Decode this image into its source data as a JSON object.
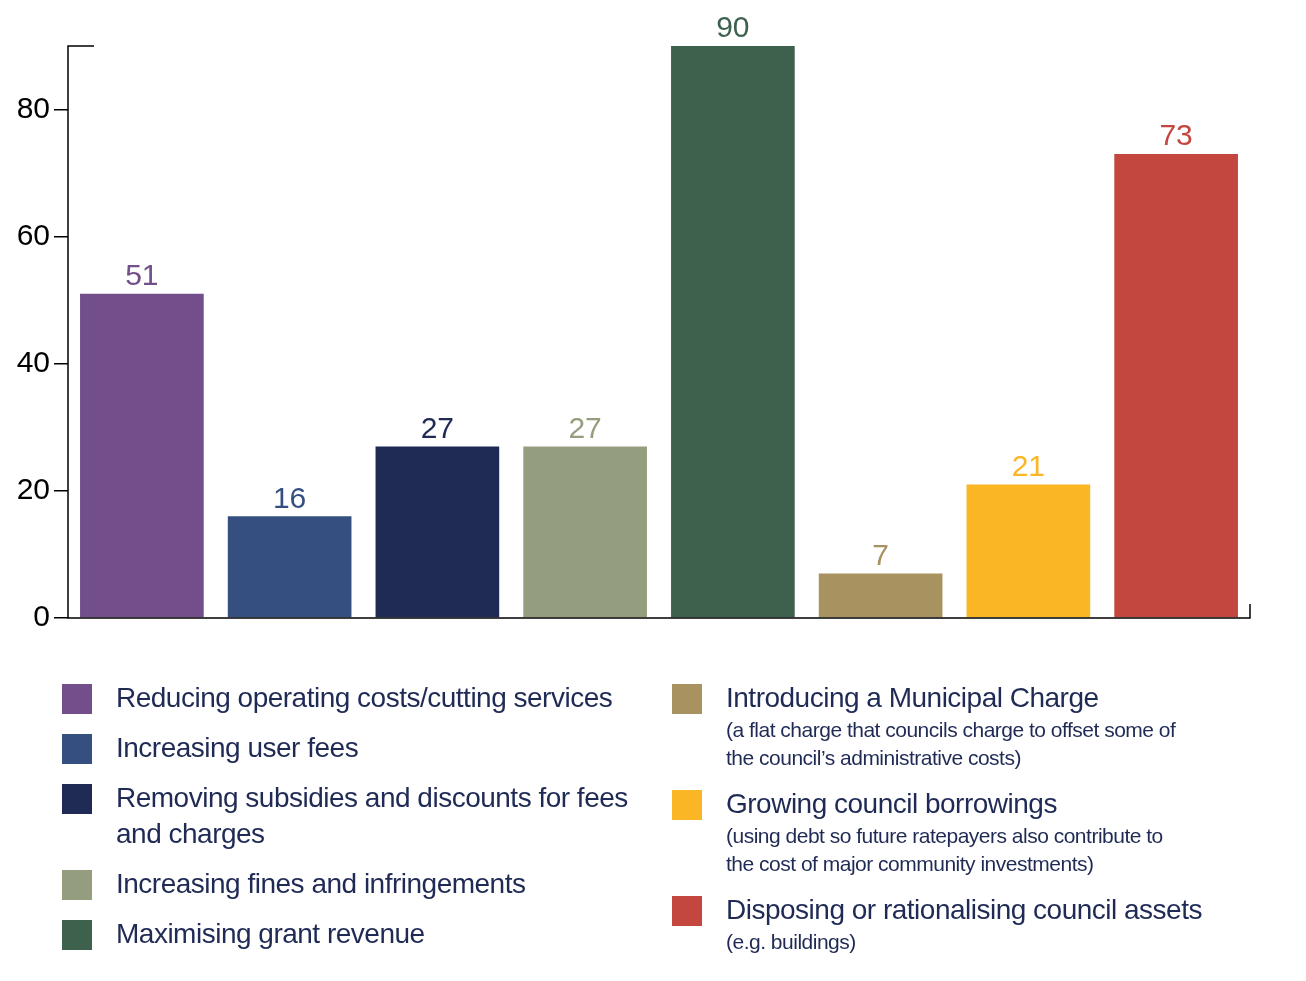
{
  "chart_data": {
    "type": "bar",
    "categories": [
      null,
      null,
      null,
      null,
      null,
      null,
      null,
      null
    ],
    "series": [
      {
        "name": "Reducing operating costs/cutting services",
        "color": "#724f8a",
        "values": [
          51,
          null,
          null,
          null,
          null,
          null,
          null,
          null
        ]
      },
      {
        "name": "Increasing user fees",
        "color": "#344f80",
        "values": [
          null,
          16,
          null,
          null,
          null,
          null,
          null,
          null
        ]
      },
      {
        "name": "Removing subsidies and discounts for fees and charges",
        "color": "#1f2a55",
        "values": [
          null,
          null,
          27,
          null,
          null,
          null,
          null,
          null
        ]
      },
      {
        "name": "Increasing fines and infringements",
        "color": "#949e7e",
        "values": [
          null,
          null,
          null,
          27,
          null,
          null,
          null,
          null
        ]
      },
      {
        "name": "Maximising grant revenue",
        "color": "#3e614e",
        "values": [
          null,
          null,
          null,
          null,
          90,
          null,
          null,
          null
        ]
      },
      {
        "name": "Introducing a Municipal Charge\n(a flat charge that councils charge to offset some of the council’s administrative costs)",
        "color": "#a8925f",
        "values": [
          null,
          null,
          null,
          null,
          null,
          7,
          null,
          null
        ]
      },
      {
        "name": "Growing council borrowings\n(using debt so future ratepayers also contribute to the cost of major community investments)",
        "color": "#fbb626",
        "values": [
          null,
          null,
          null,
          null,
          null,
          null,
          21,
          null
        ]
      },
      {
        "name": "Disposing or rationalising council assets\n(e.g. buildings)",
        "color": "#c4473f",
        "values": [
          null,
          null,
          null,
          null,
          null,
          null,
          null,
          73
        ]
      }
    ],
    "ylim": [
      0,
      90
    ],
    "yticks": [
      0,
      20,
      40,
      60,
      80
    ],
    "grid": false,
    "legend": "bottom",
    "data_labels": true
  }
}
